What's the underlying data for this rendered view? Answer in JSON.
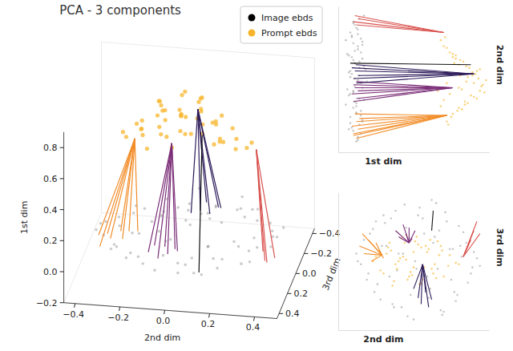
{
  "chart_data": {
    "type": "scatter3d",
    "title": "PCA - 3 components",
    "x_label": "2nd dim",
    "y_label": "3rd dim",
    "z_label": "1st dim",
    "xlim": [
      -0.45,
      0.5
    ],
    "xticks": [
      {
        "value": -0.4,
        "label": "−0.4"
      },
      {
        "value": -0.2,
        "label": "−0.2"
      },
      {
        "value": 0,
        "label": "0.0"
      },
      0.2,
      0.4
    ],
    "ylim": [
      -0.45,
      0.45
    ],
    "yticks": [
      {
        "value": -0.4,
        "label": "−0.4"
      },
      {
        "value": -0.2,
        "label": "−0.2"
      },
      {
        "value": 0,
        "label": "0.0"
      },
      0.2,
      0.4
    ],
    "zlim": [
      -0.2,
      0.9
    ],
    "zticks": [
      {
        "value": -0.2,
        "label": "−0.2"
      },
      {
        "value": 0,
        "label": "0.0"
      },
      0.2,
      0.4,
      0.6,
      0.8
    ],
    "legend": "upper right",
    "series": [
      {
        "name": "Image ebds",
        "color": "#000000",
        "x": [
          -0.38,
          -0.31,
          -0.27,
          -0.22,
          -0.18,
          -0.12,
          -0.08,
          -0.03,
          0.02,
          0.06,
          0.11,
          0.15,
          0.19,
          0.24,
          0.29,
          0.33,
          0.38,
          0.42,
          -0.35,
          -0.29,
          -0.24,
          -0.2,
          -0.14,
          -0.1,
          -0.05,
          0.0,
          0.04,
          0.09,
          0.13,
          0.18,
          0.22,
          0.27,
          0.31,
          0.36,
          0.4,
          -0.33,
          -0.26,
          -0.19,
          -0.11,
          -0.04,
          0.03,
          0.1,
          0.17,
          0.25,
          0.32,
          0.39,
          -0.3,
          -0.21,
          -0.13,
          -0.06,
          0.01,
          0.08,
          0.14,
          0.21,
          0.28,
          0.35,
          -0.25,
          -0.16,
          -0.07,
          0.05,
          0.12,
          0.2,
          0.3,
          -0.37,
          0.44,
          -0.02,
          0.07,
          -0.15,
          0.16,
          0.26
        ],
        "y": [
          0.05,
          -0.12,
          0.21,
          -0.25,
          0.1,
          0.33,
          -0.3,
          0.15,
          -0.05,
          0.28,
          -0.18,
          0.38,
          -0.35,
          0.08,
          -0.22,
          0.19,
          -0.08,
          0.02,
          -0.02,
          0.18,
          -0.15,
          0.3,
          -0.28,
          0.05,
          0.22,
          -0.38,
          0.35,
          -0.1,
          0.12,
          -0.32,
          0.26,
          -0.2,
          0.1,
          -0.14,
          0.06,
          0.14,
          -0.2,
          0.25,
          -0.06,
          -0.36,
          0.3,
          -0.24,
          0.2,
          -0.12,
          0.03,
          -0.04,
          -0.08,
          0.1,
          -0.3,
          0.37,
          0.0,
          -0.2,
          0.16,
          0.32,
          -0.26,
          0.12,
          0.26,
          -0.1,
          0.05,
          -0.15,
          0.4,
          -0.33,
          0.23,
          0.0,
          -0.03,
          -0.22,
          0.18,
          0.28,
          -0.05,
          0.08
        ],
        "z": [
          0.02,
          0.0,
          0.04,
          -0.02,
          0.05,
          0.01,
          -0.03,
          0.06,
          0.03,
          -0.01,
          0.07,
          0.0,
          -0.04,
          0.03,
          0.05,
          -0.02,
          0.01,
          0.04,
          0.03,
          -0.01,
          0.06,
          0.02,
          -0.05,
          0.04,
          0.0,
          0.05,
          -0.02,
          0.08,
          0.01,
          -0.03,
          0.03,
          0.06,
          -0.01,
          0.02,
          0.0,
          0.05,
          -0.02,
          0.02,
          0.07,
          -0.04,
          0.01,
          0.04,
          -0.01,
          0.06,
          0.03,
          0.0,
          -0.03,
          0.05,
          0.02,
          0.0,
          0.09,
          -0.02,
          0.04,
          0.01,
          -0.05,
          0.03,
          0.06,
          0.0,
          -0.02,
          0.04,
          0.02,
          0.05,
          -0.01,
          0.03,
          0.07,
          0.01,
          -0.03,
          0.02,
          0.06,
          0.0
        ]
      },
      {
        "name": "Prompt ebds",
        "color": "#f7b52b",
        "x": [
          -0.25,
          -0.2,
          -0.16,
          -0.12,
          -0.08,
          -0.04,
          0.0,
          0.04,
          0.08,
          0.12,
          0.16,
          0.2,
          0.24,
          0.28,
          -0.22,
          -0.17,
          -0.13,
          -0.09,
          -0.05,
          -0.01,
          0.03,
          0.07,
          0.11,
          0.15,
          0.19,
          0.23,
          -0.18,
          -0.14,
          -0.1,
          -0.06,
          -0.02,
          0.02,
          0.06,
          0.1,
          0.14,
          0.18,
          -0.11,
          -0.07,
          -0.03,
          0.01,
          0.05,
          0.09,
          0.13,
          -0.05,
          0.0,
          0.05,
          -0.27,
          0.3,
          -0.15,
          0.17
        ],
        "y": [
          0.03,
          -0.08,
          0.12,
          -0.02,
          0.15,
          -0.12,
          0.06,
          -0.15,
          0.1,
          -0.05,
          0.13,
          -0.1,
          0.04,
          -0.01,
          -0.06,
          0.09,
          -0.13,
          0.02,
          0.17,
          -0.09,
          0.11,
          -0.04,
          0.14,
          -0.11,
          0.07,
          -0.03,
          0.05,
          -0.16,
          0.0,
          0.12,
          -0.07,
          0.16,
          -0.12,
          0.08,
          -0.02,
          0.1,
          -0.05,
          0.03,
          -0.1,
          0.13,
          -0.14,
          0.06,
          -0.08,
          0.01,
          -0.04,
          0.09,
          0.0,
          -0.02,
          0.07,
          0.04
        ],
        "z": [
          0.62,
          0.66,
          0.7,
          0.74,
          0.78,
          0.72,
          0.8,
          0.76,
          0.82,
          0.7,
          0.68,
          0.64,
          0.6,
          0.58,
          0.65,
          0.72,
          0.76,
          0.8,
          0.84,
          0.86,
          0.83,
          0.79,
          0.75,
          0.71,
          0.66,
          0.62,
          0.69,
          0.74,
          0.82,
          0.87,
          0.85,
          0.88,
          0.81,
          0.77,
          0.73,
          0.68,
          0.6,
          0.64,
          0.7,
          0.75,
          0.79,
          0.84,
          0.67,
          0.56,
          0.62,
          0.71,
          0.63,
          0.61,
          0.58,
          0.66
        ]
      }
    ],
    "lines": [
      {
        "color": "#f28c28",
        "prompt": {
          "x": -0.21,
          "y": 0.04,
          "z": 0.62
        },
        "image": {
          "x": [
            -0.36,
            -0.33,
            -0.3,
            -0.28,
            -0.25,
            -0.23,
            -0.2,
            -0.34
          ],
          "y": [
            0.1,
            0.05,
            0.14,
            0.0,
            0.12,
            0.07,
            0.02,
            0.18
          ],
          "z": [
            0.02,
            0.0,
            0.03,
            -0.01,
            0.02,
            0.04,
            0.01,
            0.0
          ]
        }
      },
      {
        "color": "#7b2e78",
        "prompt": {
          "x": -0.03,
          "y": 0.12,
          "z": 0.66
        },
        "image": {
          "x": [
            -0.12,
            -0.1,
            -0.07,
            -0.05,
            -0.03,
            -0.01,
            0.01
          ],
          "y": [
            0.2,
            0.16,
            0.24,
            0.18,
            0.22,
            0.15,
            0.2
          ],
          "z": [
            0.0,
            0.02,
            -0.01,
            0.03,
            0.01,
            0.0,
            0.02
          ]
        }
      },
      {
        "color": "#2d1b5a",
        "prompt": {
          "x": 0.06,
          "y": -0.02,
          "z": 0.8
        },
        "image": {
          "x": [
            0.0,
            0.03,
            0.05,
            0.08,
            0.1,
            0.12
          ],
          "y": [
            -0.18,
            -0.24,
            -0.28,
            -0.2,
            -0.3,
            -0.25
          ],
          "z": [
            0.02,
            0.0,
            0.03,
            0.01,
            -0.01,
            0.02
          ]
        }
      },
      {
        "color": "#111111",
        "prompt": {
          "x": 0.12,
          "y": 0.2,
          "z": 0.78
        },
        "image": {
          "x": [
            0.13
          ],
          "y": [
            0.33
          ],
          "z": [
            -0.02
          ]
        }
      },
      {
        "color": "#d9534f",
        "prompt": {
          "x": 0.33,
          "y": 0.03,
          "z": 0.6
        },
        "image": {
          "x": [
            0.38,
            0.4,
            0.42,
            0.44
          ],
          "y": [
            0.14,
            0.2,
            0.26,
            0.18
          ],
          "z": [
            0.02,
            0.0,
            0.03,
            0.01
          ]
        }
      }
    ],
    "projections": [
      {
        "x_label": "1st dim",
        "y_label": "2nd dim",
        "xlim": [
          -0.1,
          0.9
        ],
        "ylim": [
          -0.45,
          0.5
        ],
        "tick_labels": false
      },
      {
        "x_label": "2nd dim",
        "y_label": "3rd dim",
        "xlim": [
          -0.5,
          0.5
        ],
        "ylim": [
          -0.45,
          0.45
        ],
        "tick_labels": false
      }
    ]
  }
}
